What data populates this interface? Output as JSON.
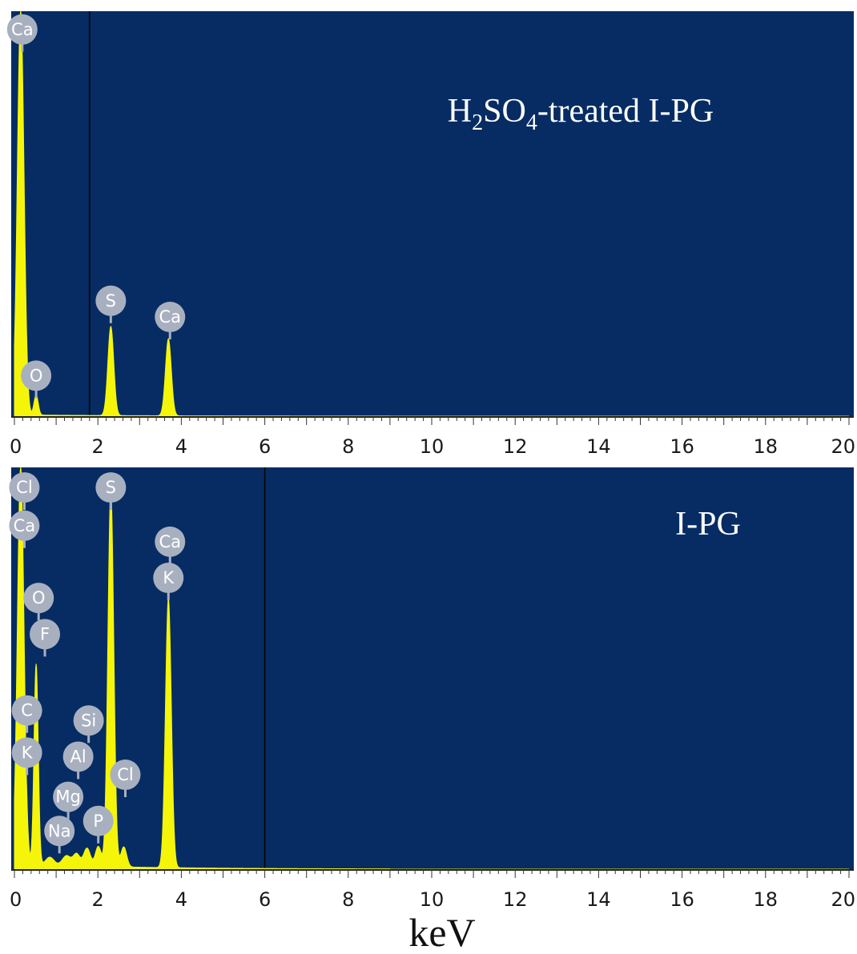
{
  "chart_data": [
    {
      "type": "area",
      "title": "H₂SO₄-treated I-PG",
      "title_parts": {
        "a": "H",
        "b": "2",
        "c": "SO",
        "d": "4",
        "e": "-treated I-PG"
      },
      "xlim": [
        0,
        20
      ],
      "xticks": [
        "0",
        "2",
        "4",
        "6",
        "8",
        "10",
        "12",
        "14",
        "16",
        "18",
        "20"
      ],
      "cursor_kev": 1.8,
      "peaks": [
        {
          "energy": 0.15,
          "height": 1.0,
          "width": 0.08
        },
        {
          "energy": 0.52,
          "height": 0.05,
          "width": 0.05
        },
        {
          "energy": 2.31,
          "height": 0.22,
          "width": 0.07
        },
        {
          "energy": 3.69,
          "height": 0.19,
          "width": 0.07
        }
      ],
      "labels": [
        {
          "text": "Ca",
          "energy": 0.15,
          "level": 0.955
        },
        {
          "text": "O",
          "energy": 0.52,
          "level": 0.1
        },
        {
          "text": "S",
          "energy": 2.31,
          "level": 0.285
        },
        {
          "text": "Ca",
          "energy": 3.69,
          "level": 0.245
        }
      ]
    },
    {
      "type": "area",
      "title": "I-PG",
      "xlim": [
        0,
        20
      ],
      "xticks": [
        "0",
        "2",
        "4",
        "6",
        "8",
        "10",
        "12",
        "14",
        "16",
        "18",
        "20"
      ],
      "cursor_kev": 6.0,
      "peaks": [
        {
          "energy": 0.15,
          "height": 1.0,
          "width": 0.08
        },
        {
          "energy": 0.52,
          "height": 0.5,
          "width": 0.05
        },
        {
          "energy": 0.85,
          "height": 0.02,
          "width": 0.1
        },
        {
          "energy": 1.25,
          "height": 0.025,
          "width": 0.1
        },
        {
          "energy": 1.49,
          "height": 0.03,
          "width": 0.08
        },
        {
          "energy": 1.74,
          "height": 0.045,
          "width": 0.08
        },
        {
          "energy": 2.01,
          "height": 0.05,
          "width": 0.07
        },
        {
          "energy": 2.31,
          "height": 0.94,
          "width": 0.07
        },
        {
          "energy": 2.62,
          "height": 0.05,
          "width": 0.07
        },
        {
          "energy": 3.69,
          "height": 0.67,
          "width": 0.07
        }
      ],
      "labels": [
        {
          "text": "Cl",
          "energy": 0.2,
          "level": 0.95
        },
        {
          "text": "Ca",
          "energy": 0.2,
          "level": 0.855
        },
        {
          "text": "O",
          "energy": 0.58,
          "level": 0.675
        },
        {
          "text": "F",
          "energy": 0.73,
          "level": 0.585
        },
        {
          "text": "C",
          "energy": 0.3,
          "level": 0.395
        },
        {
          "text": "K",
          "energy": 0.3,
          "level": 0.29
        },
        {
          "text": "Si",
          "energy": 1.74,
          "level": 0.37
        },
        {
          "text": "Al",
          "energy": 1.49,
          "level": 0.28
        },
        {
          "text": "Mg",
          "energy": 1.25,
          "level": 0.18
        },
        {
          "text": "Na",
          "energy": 1.04,
          "level": 0.095
        },
        {
          "text": "P",
          "energy": 2.01,
          "level": 0.12
        },
        {
          "text": "S",
          "energy": 2.31,
          "level": 0.95
        },
        {
          "text": "Cl",
          "energy": 2.62,
          "level": 0.235
        },
        {
          "text": "Ca",
          "energy": 3.69,
          "level": 0.815
        },
        {
          "text": "K",
          "energy": 3.69,
          "level": 0.725
        }
      ]
    }
  ],
  "xlabel": "keV",
  "colors": {
    "background": "#062c63",
    "spectrum": "#f5f50a",
    "label_fill": "#a8b0c0",
    "label_text": "#ffffff",
    "axis_text": "#1a1a1a",
    "cursor": "#000000"
  }
}
